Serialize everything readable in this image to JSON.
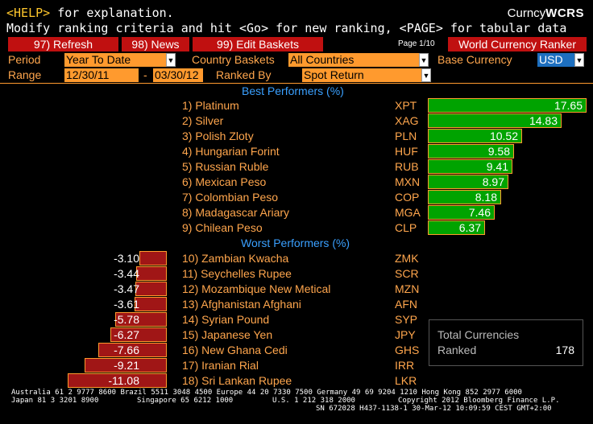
{
  "header": {
    "help_key": "<HELP>",
    "help_text": " for explanation.",
    "instructions": "Modify ranking criteria and hit <Go> for new ranking, <PAGE> for tabular data",
    "brand_prefix": "Curncy",
    "brand_code": "WCRS"
  },
  "toolbar": {
    "refresh_label": "97) Refresh",
    "news_label": "98) News",
    "edit_baskets_label": "99) Edit Baskets",
    "page_indicator": "Page 1/10",
    "ranker_title": "World Currency Ranker"
  },
  "controls": {
    "period_label": "Period",
    "period_value": "Year To Date",
    "country_baskets_label": "Country Baskets",
    "country_baskets_value": "All Countries",
    "base_currency_label": "Base Currency",
    "base_currency_value": "USD",
    "range_label": "Range",
    "range_start": "12/30/11",
    "range_sep": "-",
    "range_end": "03/30/12",
    "ranked_by_label": "Ranked By",
    "ranked_by_value": "Spot Return"
  },
  "colors": {
    "positive_bar": "#00a300",
    "negative_bar": "#a01616",
    "label_orange": "#ffa64d",
    "title_blue": "#3aa0ff",
    "button_red": "#c01010"
  },
  "best_title": "Best Performers  (%)",
  "worst_title": "Worst Performers  (%)",
  "chart_data": [
    {
      "type": "bar",
      "title": "Best Performers (%)",
      "categories": [
        "1) Platinum",
        "2) Silver",
        "3) Polish Zloty",
        "4) Hungarian Forint",
        "5) Russian Ruble",
        "6) Mexican Peso",
        "7) Colombian Peso",
        "8) Madagascar Ariary",
        "9) Chilean Peso"
      ],
      "codes": [
        "XPT",
        "XAG",
        "PLN",
        "HUF",
        "RUB",
        "MXN",
        "COP",
        "MGA",
        "CLP"
      ],
      "values": [
        17.65,
        14.83,
        10.52,
        9.58,
        9.41,
        8.97,
        8.18,
        7.46,
        6.37
      ],
      "labels": [
        "17.65",
        "14.83",
        "10.52",
        "9.58",
        "9.41",
        "8.97",
        "8.18",
        "7.46",
        "6.37"
      ],
      "xlim": [
        0,
        17.65
      ]
    },
    {
      "type": "bar",
      "title": "Worst Performers (%)",
      "categories": [
        "10) Zambian Kwacha",
        "11) Seychelles Rupee",
        "12) Mozambique New Metical",
        "13) Afghanistan Afghani",
        "14) Syrian Pound",
        "15) Japanese Yen",
        "16) New Ghana Cedi",
        "17) Iranian Rial",
        "18) Sri Lankan Rupee"
      ],
      "codes": [
        "ZMK",
        "SCR",
        "MZN",
        "AFN",
        "SYP",
        "JPY",
        "GHS",
        "IRR",
        "LKR"
      ],
      "values": [
        -3.1,
        -3.44,
        -3.47,
        -3.61,
        -5.78,
        -6.27,
        -7.66,
        -9.21,
        -11.08
      ],
      "labels": [
        "-3.10",
        "-3.44",
        "-3.47",
        "-3.61",
        "-5.78",
        "-6.27",
        "-7.66",
        "-9.21",
        "-11.08"
      ],
      "xlim": [
        -11.08,
        0
      ]
    }
  ],
  "totals": {
    "label_line1": "Total Currencies",
    "label_line2": "Ranked",
    "count": "178"
  },
  "footer": {
    "line1": "Australia 61 2 9777 8600 Brazil 5511 3048 4500 Europe 44 20 7330 7500 Germany 49 69 9204 1210 Hong Kong 852 2977 6000",
    "line2_left": "Japan 81 3 3201 8900",
    "line2_mid1": "Singapore 65 6212 1000",
    "line2_mid2": "U.S. 1 212 318 2000",
    "line2_right": "Copyright 2012 Bloomberg Finance L.P.",
    "line3": "SN 672028 H437-1138-1 30-Mar-12 10:09:59 CEST GMT+2:00"
  }
}
